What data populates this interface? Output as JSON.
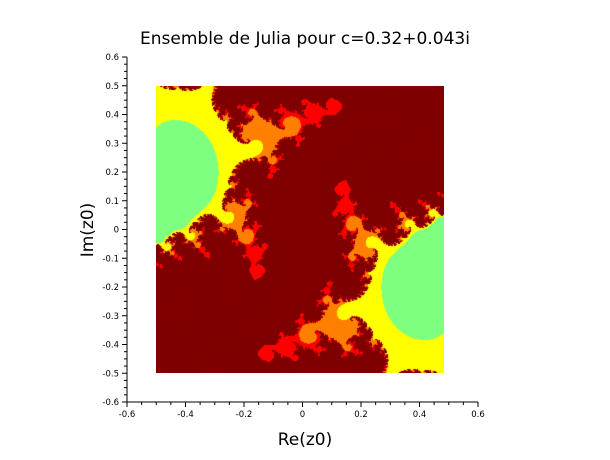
{
  "chart_data": {
    "type": "heatmap",
    "title": "Ensemble de Julia pour c=0.32+0.043i",
    "xlabel": "Re(z0)",
    "ylabel": "Im(z0)",
    "c": {
      "re": 0.32,
      "im": 0.043
    },
    "xlim": [
      -0.6,
      0.6
    ],
    "ylim": [
      -0.6,
      0.6
    ],
    "image_extent": {
      "x": [
        -0.5,
        0.5
      ],
      "y": [
        -0.5,
        0.5
      ]
    },
    "x_ticks": [
      "-0.6",
      "-0.4",
      "-0.2",
      "0",
      "0.2",
      "0.4",
      "0.6"
    ],
    "y_ticks": [
      "0.6",
      "0.5",
      "0.4",
      "0.3",
      "0.2",
      "0.1",
      "0",
      "-0.1",
      "-0.2",
      "-0.3",
      "-0.4",
      "-0.5",
      "-0.6"
    ],
    "grid": false,
    "colormap": [
      "#00007f",
      "#0000ff",
      "#007fff",
      "#00ffff",
      "#7fff7f",
      "#ffff00",
      "#ff7f00",
      "#ff0000",
      "#7f0000"
    ],
    "interior_color": "#800000",
    "background_color": "#00008b"
  }
}
